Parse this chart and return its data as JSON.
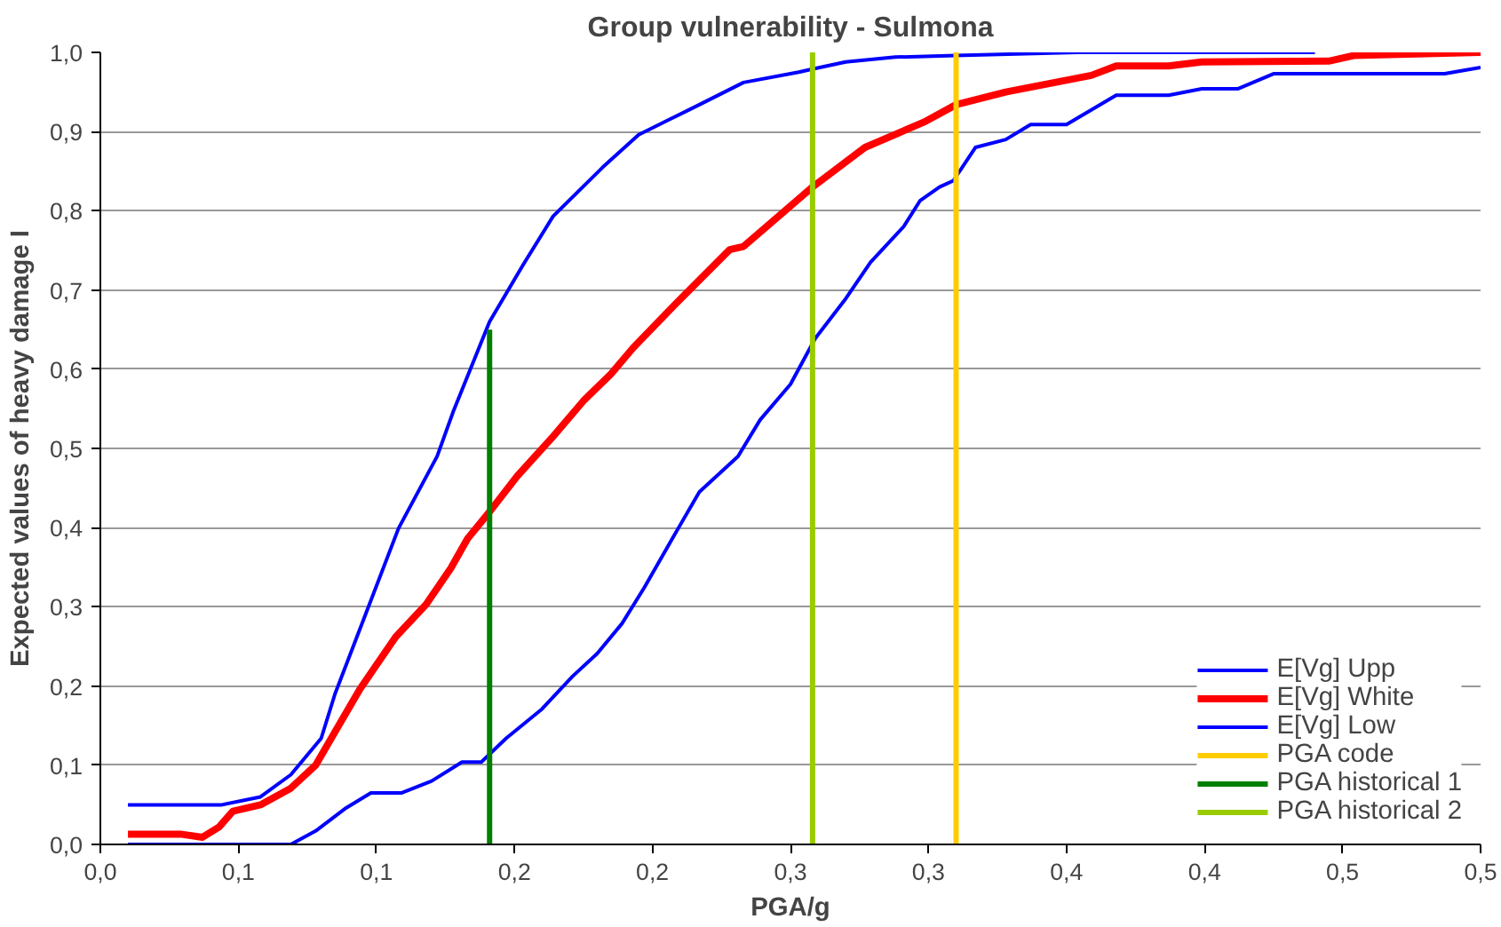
{
  "chart_data": {
    "type": "line",
    "title": "Group vulnerability - Sulmona",
    "xlabel": "PGA/g",
    "ylabel": "Expected values of heavy damage I",
    "xlim": [
      0,
      0.5
    ],
    "ylim": [
      0,
      1
    ],
    "xticks": [
      {
        "value": 0,
        "label": "0,0"
      },
      {
        "value": 0.05,
        "label": "0,1"
      },
      {
        "value": 0.1,
        "label": "0,1"
      },
      {
        "value": 0.15,
        "label": "0,2"
      },
      {
        "value": 0.2,
        "label": "0,2"
      },
      {
        "value": 0.25,
        "label": "0,3"
      },
      {
        "value": 0.3,
        "label": "0,3"
      },
      {
        "value": 0.35,
        "label": "0,4"
      },
      {
        "value": 0.4,
        "label": "0,4"
      },
      {
        "value": 0.45,
        "label": "0,5"
      },
      {
        "value": 0.5,
        "label": "0,5"
      }
    ],
    "yticks": [
      {
        "value": 0,
        "label": "0,0"
      },
      {
        "value": 0.1,
        "label": "0,1"
      },
      {
        "value": 0.2,
        "label": "0,2"
      },
      {
        "value": 0.3,
        "label": "0,3"
      },
      {
        "value": 0.4,
        "label": "0,4"
      },
      {
        "value": 0.5,
        "label": "0,5"
      },
      {
        "value": 0.6,
        "label": "0,6"
      },
      {
        "value": 0.7,
        "label": "0,7"
      },
      {
        "value": 0.8,
        "label": "0,8"
      },
      {
        "value": 0.9,
        "label": "0,9"
      },
      {
        "value": 1,
        "label": "1,0"
      }
    ],
    "grid": "y",
    "legend": "bottom right",
    "marker": "none",
    "line_style": "solid",
    "series": [
      {
        "name": "E[Vg] Upp",
        "color": "#0000ff",
        "x": [
          0.01,
          0.044,
          0.058,
          0.069,
          0.08,
          0.085,
          0.098,
          0.108,
          0.122,
          0.128,
          0.141,
          0.153,
          0.164,
          0.182,
          0.195,
          0.206,
          0.217,
          0.233,
          0.253,
          0.258,
          0.27,
          0.288,
          0.31,
          0.354,
          0.44
        ],
        "values": [
          0.05,
          0.05,
          0.06,
          0.088,
          0.134,
          0.19,
          0.308,
          0.399,
          0.49,
          0.548,
          0.66,
          0.731,
          0.793,
          0.855,
          0.896,
          0.915,
          0.934,
          0.962,
          0.975,
          0.979,
          0.988,
          0.994,
          0.996,
          1.0,
          1.0
        ]
      },
      {
        "name": "E[Vg] White",
        "color": "#ff0000",
        "x": [
          0.01,
          0.029,
          0.037,
          0.043,
          0.048,
          0.058,
          0.069,
          0.078,
          0.085,
          0.094,
          0.107,
          0.118,
          0.127,
          0.133,
          0.141,
          0.151,
          0.164,
          0.175,
          0.185,
          0.193,
          0.208,
          0.228,
          0.233,
          0.253,
          0.258,
          0.277,
          0.299,
          0.31,
          0.328,
          0.359,
          0.368,
          0.387,
          0.399,
          0.445,
          0.454,
          0.5
        ],
        "values": [
          0.013,
          0.013,
          0.009,
          0.022,
          0.042,
          0.05,
          0.071,
          0.1,
          0.142,
          0.196,
          0.262,
          0.303,
          0.349,
          0.386,
          0.42,
          0.465,
          0.515,
          0.56,
          0.594,
          0.627,
          0.681,
          0.751,
          0.755,
          0.815,
          0.83,
          0.88,
          0.913,
          0.934,
          0.95,
          0.971,
          0.983,
          0.983,
          0.988,
          0.989,
          0.996,
          1.0
        ]
      },
      {
        "name": "E[Vg] Low",
        "color": "#0000ff",
        "x": [
          0.01,
          0.069,
          0.078,
          0.089,
          0.098,
          0.109,
          0.12,
          0.131,
          0.138,
          0.147,
          0.16,
          0.171,
          0.18,
          0.189,
          0.197,
          0.208,
          0.217,
          0.231,
          0.239,
          0.25,
          0.259,
          0.27,
          0.279,
          0.291,
          0.297,
          0.304,
          0.309,
          0.317,
          0.328,
          0.337,
          0.35,
          0.368,
          0.387,
          0.399,
          0.412,
          0.425,
          0.487,
          0.5
        ],
        "values": [
          0,
          0,
          0.017,
          0.046,
          0.065,
          0.065,
          0.08,
          0.104,
          0.104,
          0.134,
          0.171,
          0.212,
          0.241,
          0.279,
          0.324,
          0.391,
          0.445,
          0.49,
          0.536,
          0.581,
          0.639,
          0.689,
          0.735,
          0.78,
          0.813,
          0.83,
          0.838,
          0.88,
          0.89,
          0.909,
          0.909,
          0.946,
          0.946,
          0.954,
          0.954,
          0.973,
          0.973,
          0.981
        ]
      },
      {
        "name": "PGA code",
        "color": "#ffcc00",
        "x": [
          0.31,
          0.31
        ],
        "values": [
          0,
          1
        ]
      },
      {
        "name": "PGA historical 1",
        "color": "#008000",
        "x": [
          0.141,
          0.141
        ],
        "values": [
          0,
          0.65
        ]
      },
      {
        "name": "PGA historical 2",
        "color": "#99cc00",
        "x": [
          0.258,
          0.258
        ],
        "values": [
          0,
          1
        ]
      }
    ]
  }
}
